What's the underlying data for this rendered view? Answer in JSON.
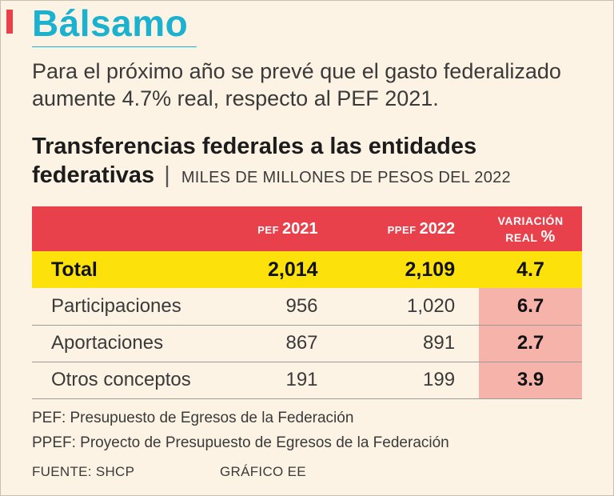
{
  "header": {
    "title": "Bálsamo",
    "intro": "Para el próximo año se prevé que el gasto federalizado aumente 4.7% real, respecto al PEF 2021."
  },
  "chart_data": {
    "type": "table",
    "title": "Transferencias federales a las entidades federativas",
    "separator": "|",
    "units": "MILES DE MILLONES DE PESOS DEL 2022",
    "columns": [
      {
        "prefix": "PEF",
        "year": "2021"
      },
      {
        "prefix": "PPEF",
        "year": "2022"
      },
      {
        "line1": "VARIACIÓN",
        "line2": "REAL",
        "pct": "%"
      }
    ],
    "total": {
      "label": "Total",
      "pef_2021": "2,014",
      "ppef_2022": "2,109",
      "variacion": "4.7"
    },
    "rows": [
      {
        "label": "Participaciones",
        "pef_2021": "956",
        "ppef_2022": "1,020",
        "variacion": "6.7"
      },
      {
        "label": "Aportaciones",
        "pef_2021": "867",
        "ppef_2022": "891",
        "variacion": "2.7"
      },
      {
        "label": "Otros conceptos",
        "pef_2021": "191",
        "ppef_2022": "199",
        "variacion": "3.9"
      }
    ]
  },
  "notes": [
    "PEF: Presupuesto de Egresos de la Federación",
    "PPEF: Proyecto de Presupuesto de Egresos de la Federación"
  ],
  "footer": {
    "source": "FUENTE: SHCP",
    "credit": "GRÁFICO EE"
  },
  "colors": {
    "background": "#fdf3e4",
    "title": "#1bb2cf",
    "header_red": "#e8414b",
    "total_yellow": "#fce20a",
    "variation_pink": "#f6b3aa"
  }
}
